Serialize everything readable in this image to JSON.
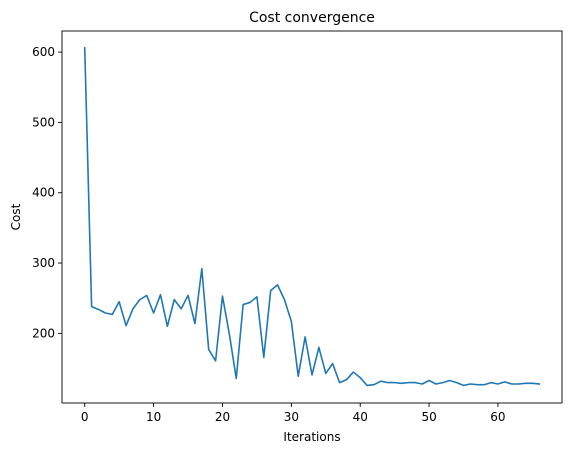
{
  "chart_data": {
    "type": "line",
    "title": "Cost convergence",
    "xlabel": "Iterations",
    "ylabel": "Cost",
    "xlim": [
      -3.3,
      69.3
    ],
    "ylim": [
      101,
      630
    ],
    "x_ticks": [
      0,
      10,
      20,
      30,
      40,
      50,
      60
    ],
    "y_ticks": [
      200,
      300,
      400,
      500,
      600
    ],
    "grid": false,
    "legend": "none",
    "line_color": "#1f77b4",
    "series": [
      {
        "x": [
          0,
          1,
          2,
          3,
          4,
          5,
          6,
          7,
          8,
          9,
          10,
          11,
          12,
          13,
          14,
          15,
          16,
          17,
          18,
          19,
          20,
          21,
          22,
          23,
          24,
          25,
          26,
          27,
          28,
          29,
          30,
          31,
          32,
          33,
          34,
          35,
          36,
          37,
          38,
          39,
          40,
          41,
          42,
          43,
          44,
          45,
          46,
          47,
          48,
          49,
          50,
          51,
          52,
          53,
          54,
          55,
          56,
          57,
          58,
          59,
          60,
          61,
          62,
          63,
          64,
          65,
          66
        ],
        "values": [
          606,
          238,
          234,
          229,
          227,
          245,
          211,
          235,
          248,
          254,
          229,
          255,
          210,
          248,
          235,
          254,
          214,
          292,
          177,
          161,
          253,
          199,
          136,
          241,
          244,
          252,
          166,
          261,
          269,
          248,
          217,
          139,
          195,
          141,
          180,
          143,
          157,
          130,
          134,
          145,
          137,
          126,
          127,
          132,
          130,
          130,
          129,
          130,
          130,
          128,
          133,
          128,
          130,
          133,
          130,
          126,
          128,
          127,
          127,
          130,
          128,
          131,
          128,
          128,
          129,
          129,
          128
        ]
      }
    ]
  }
}
